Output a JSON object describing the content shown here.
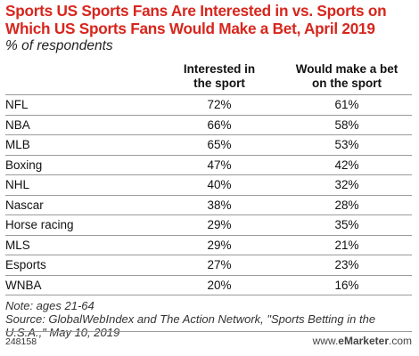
{
  "chart_data": {
    "type": "table",
    "title": "Sports US Sports Fans Are Interested in vs. Sports on Which US Sports Fans Would Make a Bet, April 2019",
    "subtitle": "% of respondents",
    "columns": [
      "",
      "Interested in the sport",
      "Would make a bet on the sport"
    ],
    "categories": [
      "NFL",
      "NBA",
      "MLB",
      "Boxing",
      "NHL",
      "Nascar",
      "Horse racing",
      "MLS",
      "Esports",
      "WNBA"
    ],
    "series": [
      {
        "name": "Interested in the sport",
        "values": [
          72,
          66,
          65,
          47,
          40,
          38,
          29,
          29,
          27,
          20
        ]
      },
      {
        "name": "Would make a bet on the sport",
        "values": [
          61,
          58,
          53,
          42,
          32,
          28,
          35,
          21,
          23,
          16
        ]
      }
    ],
    "rows": [
      [
        "NFL",
        "72%",
        "61%"
      ],
      [
        "NBA",
        "66%",
        "58%"
      ],
      [
        "MLB",
        "65%",
        "53%"
      ],
      [
        "Boxing",
        "47%",
        "42%"
      ],
      [
        "NHL",
        "40%",
        "32%"
      ],
      [
        "Nascar",
        "38%",
        "28%"
      ],
      [
        "Horse racing",
        "29%",
        "35%"
      ],
      [
        "MLS",
        "29%",
        "21%"
      ],
      [
        "Esports",
        "27%",
        "23%"
      ],
      [
        "WNBA",
        "20%",
        "16%"
      ]
    ],
    "note": "Note: ages 21-64",
    "source": "Source: GlobalWebIndex and The Action Network, \"Sports Betting in the U.S.A.,\" May 10, 2019"
  },
  "header": {
    "col_interested_line1": "Interested in",
    "col_interested_line2": "the sport",
    "col_bet_line1": "Would make a bet",
    "col_bet_line2": "on the sport"
  },
  "footer": {
    "chart_id": "248158",
    "brand_prefix": "www.",
    "brand_name": "eMarketer",
    "brand_suffix": ".com"
  },
  "colors": {
    "title": "#d7261d",
    "rule": "#9a9a9a",
    "text": "#222222"
  }
}
